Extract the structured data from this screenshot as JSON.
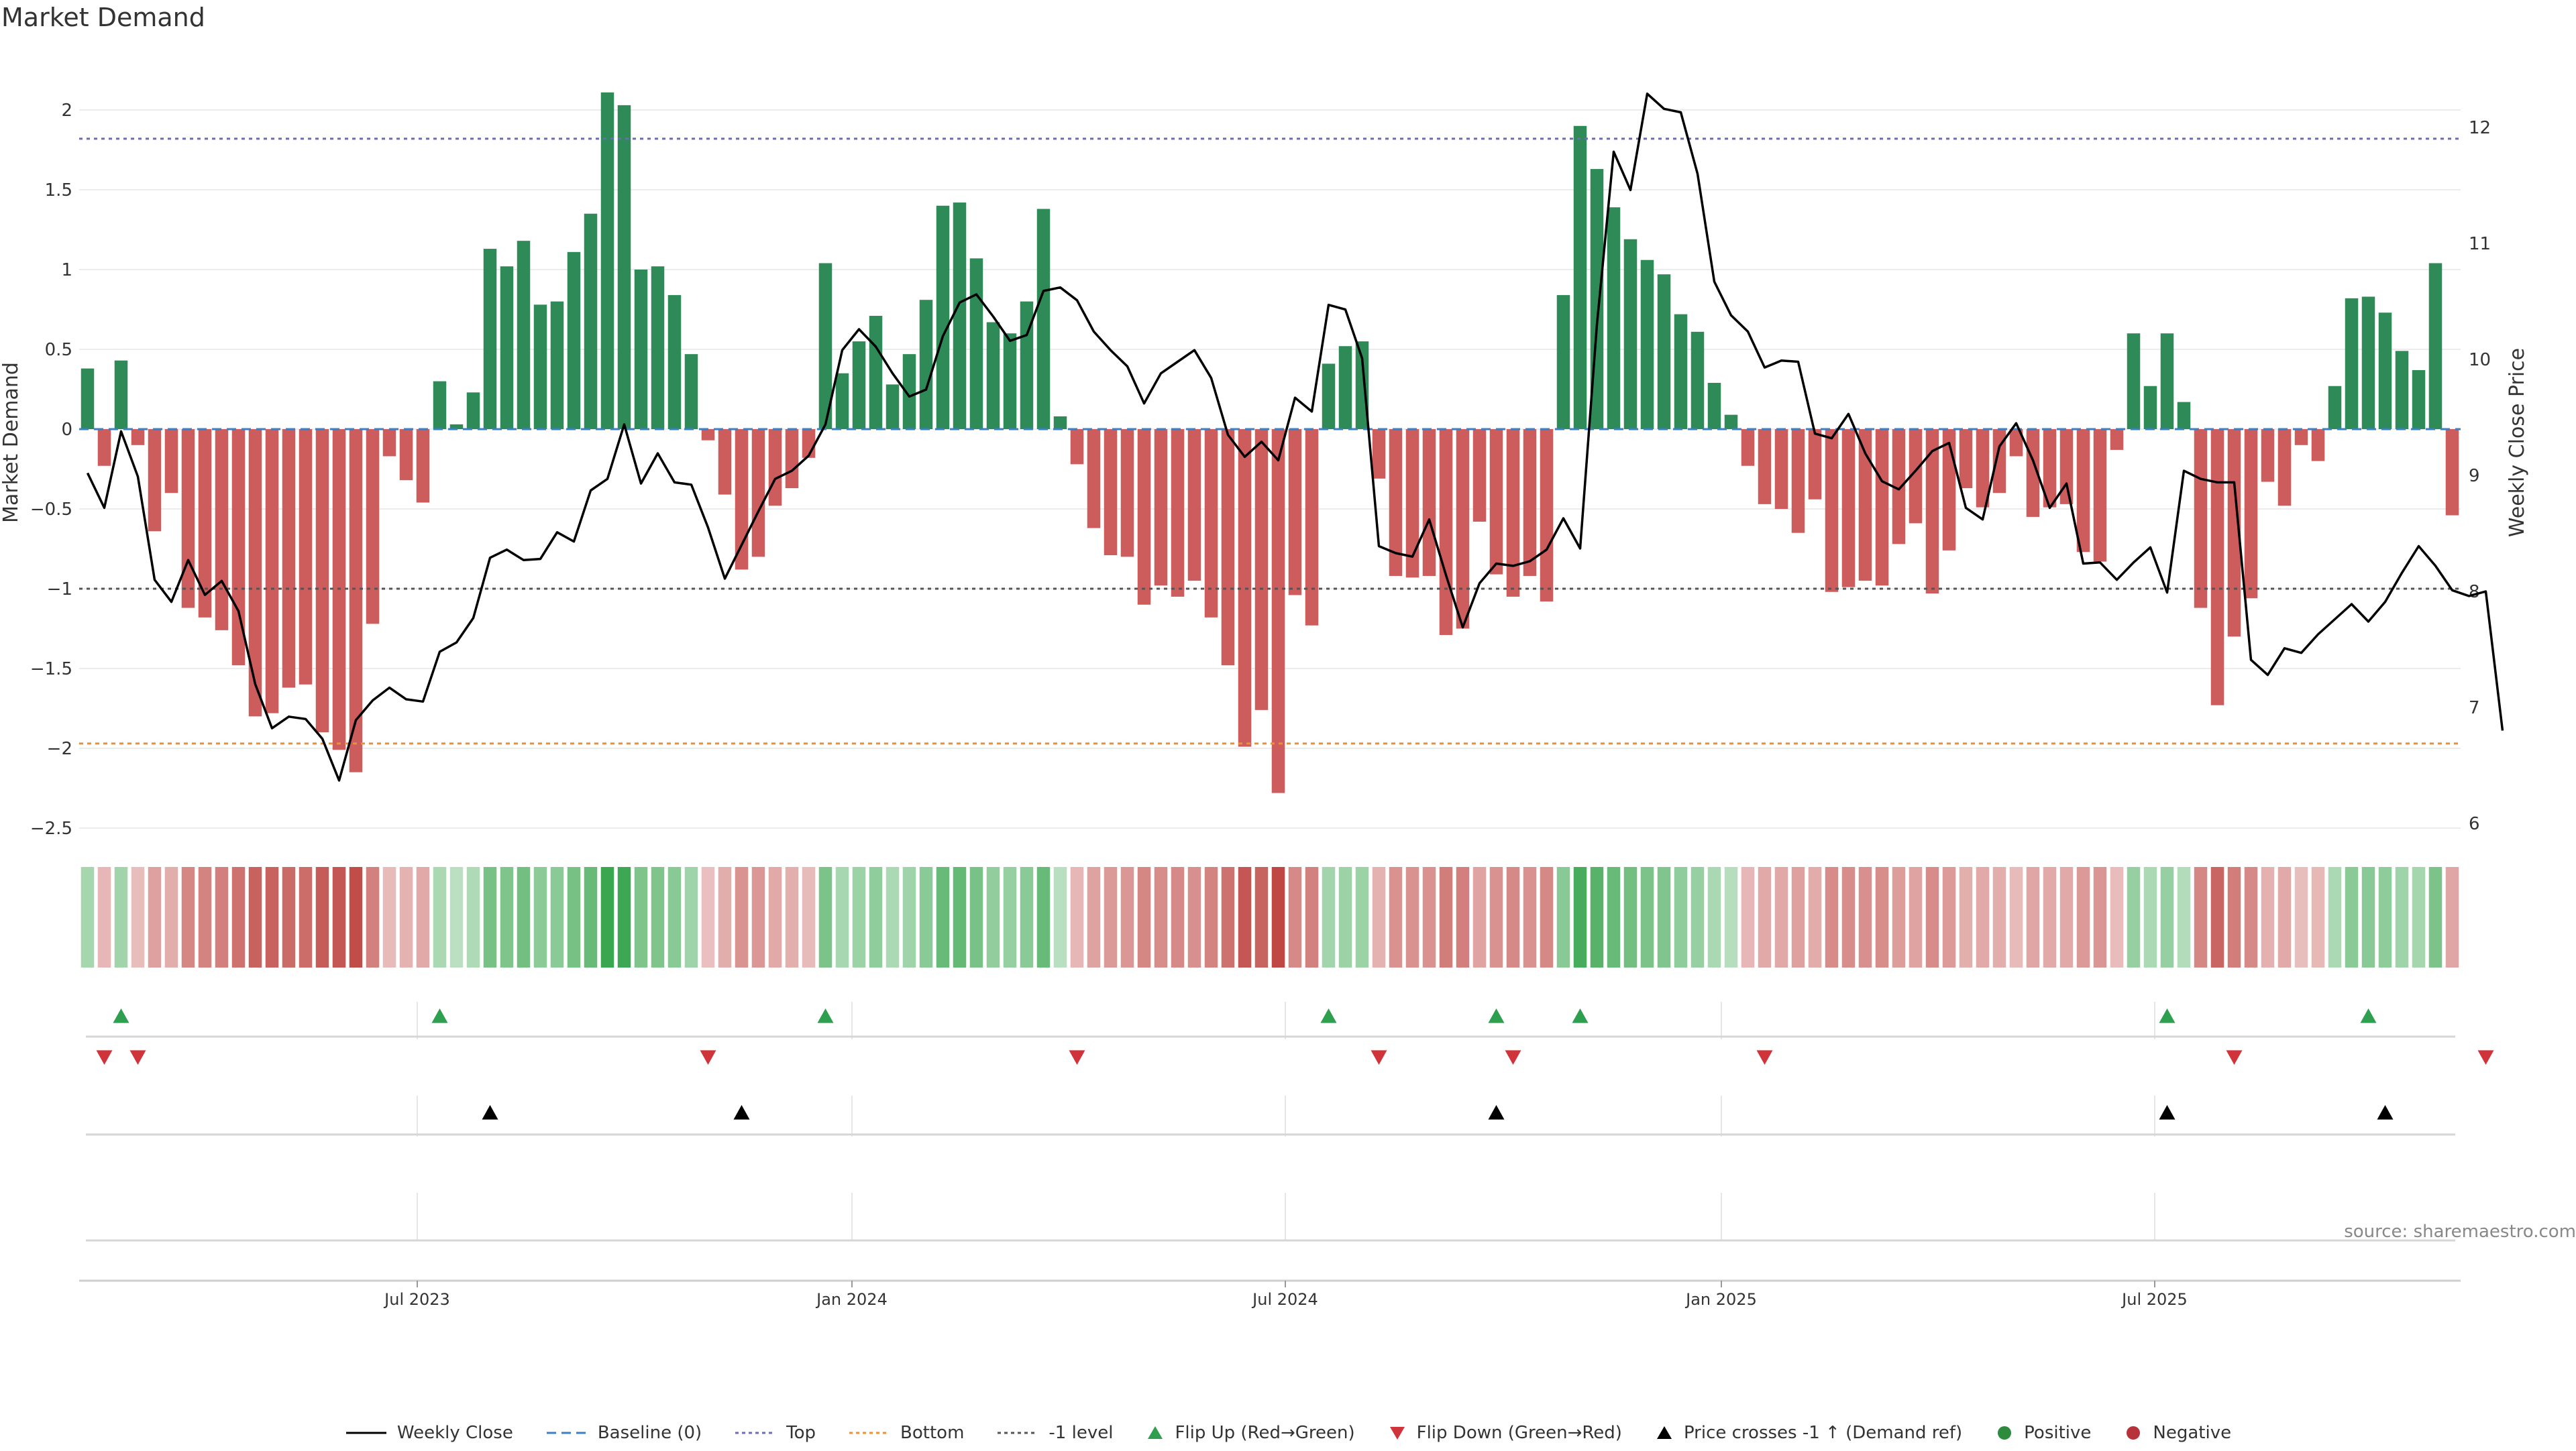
{
  "title": "Market Demand",
  "source": "source: sharemaestro.com",
  "chart_data": {
    "type": "bar",
    "left_axis_label": "Market Demand",
    "right_axis_label": "Weekly Close Price",
    "ylim_left": [
      -2.5,
      2.3
    ],
    "yticks_left": [
      "2",
      "1.5",
      "1",
      "0.5",
      "0",
      "−0.5",
      "−1",
      "−1.5",
      "−2",
      "−2.5"
    ],
    "ylim_right": [
      6,
      12.5
    ],
    "yticks_right": [
      "12",
      "11",
      "10",
      "9",
      "8",
      "7",
      "6"
    ],
    "x_ticks": [
      "Jul 2023",
      "Jan 2024",
      "Jul 2024",
      "Jan 2025",
      "Jul 2025"
    ],
    "reference_lines": [
      {
        "name": "Top",
        "value": 1.82,
        "color": "#6b6bb8"
      },
      {
        "name": "Bottom",
        "value": -1.97,
        "color": "#e8913a"
      },
      {
        "name": "-1 level",
        "value": -1.0,
        "color": "#555555"
      },
      {
        "name": "Baseline (0)",
        "value": 0,
        "color": "#3b7fc4"
      }
    ],
    "demand": [
      0.38,
      -0.23,
      0.43,
      -0.1,
      -0.64,
      -0.4,
      -1.12,
      -1.18,
      -1.26,
      -1.48,
      -1.8,
      -1.78,
      -1.62,
      -1.6,
      -1.9,
      -2.01,
      -2.15,
      -1.22,
      -0.17,
      -0.32,
      -0.46,
      0.3,
      0.03,
      0.23,
      1.13,
      1.02,
      1.18,
      0.78,
      0.8,
      1.11,
      1.35,
      2.11,
      2.03,
      1.0,
      1.02,
      0.84,
      0.47,
      -0.07,
      -0.41,
      -0.88,
      -0.8,
      -0.48,
      -0.37,
      -0.18,
      1.04,
      0.35,
      0.55,
      0.71,
      0.28,
      0.47,
      0.81,
      1.4,
      1.42,
      1.07,
      0.67,
      0.6,
      0.8,
      1.38,
      0.08,
      -0.22,
      -0.62,
      -0.79,
      -0.8,
      -1.1,
      -0.98,
      -1.05,
      -0.95,
      -1.18,
      -1.48,
      -1.99,
      -1.76,
      -2.28,
      -1.04,
      -1.23,
      0.41,
      0.52,
      0.55,
      -0.31,
      -0.92,
      -0.93,
      -0.92,
      -1.29,
      -1.25,
      -0.58,
      -0.91,
      -1.05,
      -0.92,
      -1.08,
      0.84,
      1.9,
      1.63,
      1.39,
      1.19,
      1.06,
      0.97,
      0.72,
      0.61,
      0.29,
      0.09,
      -0.23,
      -0.47,
      -0.5,
      -0.65,
      -0.44,
      -1.02,
      -0.99,
      -0.95,
      -0.98,
      -0.72,
      -0.59,
      -1.03,
      -0.76,
      -0.37,
      -0.49,
      -0.4,
      -0.17,
      -0.55,
      -0.49,
      -0.47,
      -0.77,
      -0.83,
      -0.13,
      0.6,
      0.27,
      0.6,
      0.17,
      -1.12,
      -1.73,
      -1.3,
      -1.06,
      -0.33,
      -0.48,
      -0.1,
      -0.2,
      0.27,
      0.82,
      0.83,
      0.73,
      0.49,
      0.37,
      1.04,
      -0.54
    ],
    "price": [
      9.02,
      8.72,
      9.38,
      8.99,
      8.1,
      7.91,
      8.27,
      7.97,
      8.09,
      7.83,
      7.2,
      6.82,
      6.92,
      6.9,
      6.73,
      6.37,
      6.89,
      7.06,
      7.17,
      7.07,
      7.05,
      7.48,
      7.56,
      7.77,
      8.29,
      8.36,
      8.27,
      8.28,
      8.51,
      8.43,
      8.87,
      8.97,
      9.44,
      8.93,
      9.19,
      8.94,
      8.92,
      8.55,
      8.11,
      8.4,
      8.69,
      8.97,
      9.04,
      9.17,
      9.44,
      10.08,
      10.26,
      10.11,
      9.88,
      9.68,
      9.74,
      10.2,
      10.49,
      10.56,
      10.37,
      10.16,
      10.21,
      10.59,
      10.62,
      10.51,
      10.24,
      10.08,
      9.94,
      9.62,
      9.88,
      9.98,
      10.08,
      9.84,
      9.35,
      9.16,
      9.29,
      9.13,
      9.67,
      9.55,
      10.47,
      10.43,
      10.01,
      8.39,
      8.33,
      8.3,
      8.62,
      8.14,
      7.69,
      8.07,
      8.24,
      8.22,
      8.26,
      8.36,
      8.63,
      8.37,
      10.3,
      11.79,
      11.46,
      12.29,
      12.16,
      12.13,
      11.6,
      10.67,
      10.38,
      10.24,
      9.93,
      9.99,
      9.98,
      9.36,
      9.32,
      9.53,
      9.19,
      8.95,
      8.88,
      9.04,
      9.21,
      9.28,
      8.72,
      8.62,
      9.25,
      9.45,
      9.13,
      8.72,
      8.93,
      8.24,
      8.25,
      8.1,
      8.25,
      8.38,
      7.99,
      9.04,
      8.97,
      8.94,
      8.94,
      7.41,
      7.28,
      7.51,
      7.47,
      7.63,
      7.76,
      7.89,
      7.74,
      7.91,
      8.16,
      8.39,
      8.22,
      8.01,
      7.96,
      8.0,
      6.8
    ],
    "flip_up_weeks": [
      2,
      21,
      44,
      74,
      84,
      89,
      124,
      136
    ],
    "flip_down_weeks": [
      1,
      3,
      37,
      59,
      77,
      85,
      100,
      128,
      143
    ],
    "price_cross_weeks": [
      24,
      39,
      84,
      124,
      137
    ],
    "legend": [
      {
        "label": "Weekly Close",
        "kind": "line-solid",
        "color": "#000000"
      },
      {
        "label": "Baseline (0)",
        "kind": "line-dash",
        "color": "#3b7fc4"
      },
      {
        "label": "Top",
        "kind": "line-dot",
        "color": "#6b6bb8"
      },
      {
        "label": "Bottom",
        "kind": "line-dot",
        "color": "#e8913a"
      },
      {
        "label": "-1 level",
        "kind": "line-dot",
        "color": "#555555"
      },
      {
        "label": "Flip Up (Red→Green)",
        "kind": "tri-up",
        "color": "#2e9e4f"
      },
      {
        "label": "Flip Down (Green→Red)",
        "kind": "tri-down",
        "color": "#d0343a"
      },
      {
        "label": "Price crosses -1 ↑ (Demand ref)",
        "kind": "tri-up",
        "color": "#000000"
      },
      {
        "label": "Positive",
        "kind": "dot",
        "color": "#2e8b3e"
      },
      {
        "label": "Negative",
        "kind": "dot",
        "color": "#b8323a"
      }
    ],
    "colors": {
      "positive_bar": "#2e8b57",
      "negative_bar": "#cd5c5c",
      "price_line": "#000000"
    }
  }
}
